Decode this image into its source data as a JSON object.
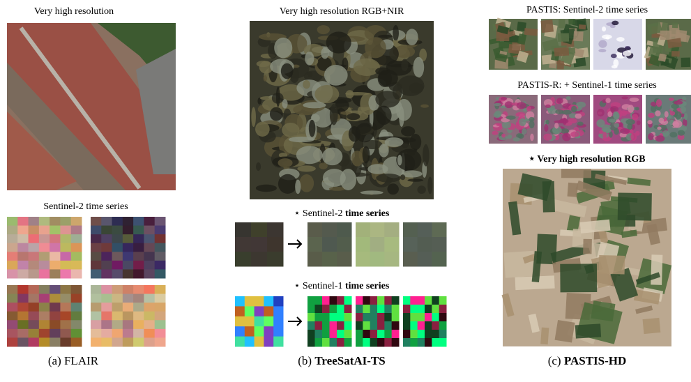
{
  "marker": "⋆",
  "panels": [
    {
      "image_titles": [
        "Very high resolution",
        "Sentinel-2 time series"
      ],
      "caption": {
        "prefix": "(a)",
        "name": "FLAIR"
      }
    },
    {
      "image_titles": [
        {
          "text": "Very high resolution RGB+NIR"
        },
        {
          "prefix": "Sentinel-2",
          "bold": "time series"
        },
        {
          "prefix": "Sentinel-1",
          "bold": "time series"
        }
      ],
      "caption": {
        "prefix": "(b)",
        "name": "TreeSatAI-TS"
      }
    },
    {
      "image_titles": [
        "PASTIS: Sentinel-2 time series",
        "PASTIS-R: + Sentinel-1 time series",
        "Very high resolution RGB"
      ],
      "caption": {
        "prefix": "(c)",
        "name": "PASTIS-HD"
      }
    }
  ]
}
